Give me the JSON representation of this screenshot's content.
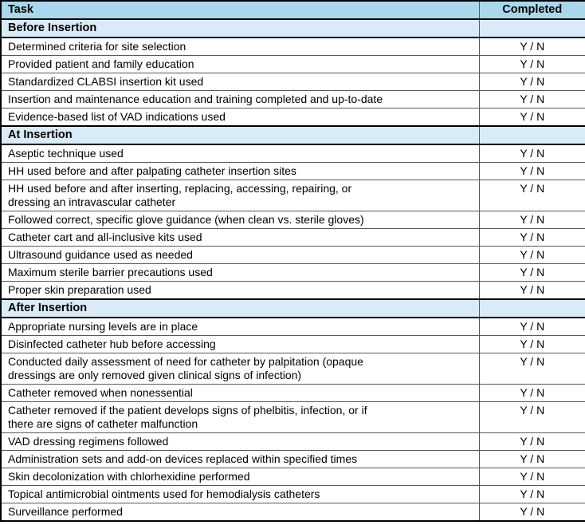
{
  "table": {
    "columns": [
      {
        "label": "Task"
      },
      {
        "label": "Completed"
      }
    ],
    "completed_value": "Y / N",
    "sections": [
      {
        "title": "Before Insertion",
        "tasks": [
          "Determined criteria for site selection",
          "Provided patient and family education",
          "Standardized CLABSI insertion kit used",
          "Insertion and maintenance education and training completed and up-to-date",
          "Evidence-based list of VAD indications used"
        ]
      },
      {
        "title": "At Insertion",
        "tasks": [
          "Aseptic technique used",
          "HH used before and after palpating catheter insertion sites",
          "HH used before and after inserting, replacing, accessing, repairing, or\ndressing an intravascular catheter",
          "Followed correct, specific glove guidance (when clean vs. sterile gloves)",
          "Catheter cart and all-inclusive kits used",
          "Ultrasound guidance used as needed",
          "Maximum sterile barrier precautions used",
          "Proper skin preparation used"
        ]
      },
      {
        "title": "After Insertion",
        "tasks": [
          "Appropriate nursing levels are in place",
          "Disinfected catheter hub before accessing",
          "Conducted daily assessment of need for catheter by palpitation (opaque\ndressings are only removed given clinical signs of infection)",
          "Catheter removed when nonessential",
          "Catheter removed if the patient develops signs of phelbitis, infection, or if\nthere are signs of catheter malfunction",
          "VAD dressing regimens followed",
          "Administration sets and add-on devices replaced within specified times",
          "Skin decolonization with chlorhexidine performed",
          "Topical antimicrobial ointments used for hemodialysis catheters",
          "Surveillance performed"
        ]
      }
    ]
  },
  "colors": {
    "header_bg": "#a9d8ec",
    "section_bg": "#d8ebf7",
    "border_outer": "#000000",
    "border_inner": "#595959"
  }
}
